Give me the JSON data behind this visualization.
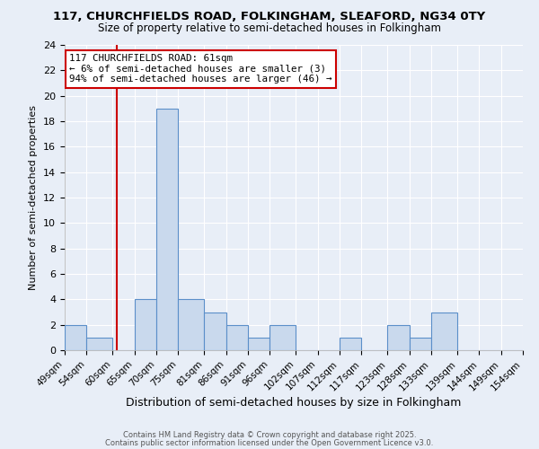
{
  "title_line1": "117, CHURCHFIELDS ROAD, FOLKINGHAM, SLEAFORD, NG34 0TY",
  "title_line2": "Size of property relative to semi-detached houses in Folkingham",
  "xlabel": "Distribution of semi-detached houses by size in Folkingham",
  "ylabel": "Number of semi-detached properties",
  "bin_labels": [
    "49sqm",
    "54sqm",
    "60sqm",
    "65sqm",
    "70sqm",
    "75sqm",
    "81sqm",
    "86sqm",
    "91sqm",
    "96sqm",
    "102sqm",
    "107sqm",
    "112sqm",
    "117sqm",
    "123sqm",
    "128sqm",
    "133sqm",
    "139sqm",
    "144sqm",
    "149sqm",
    "154sqm"
  ],
  "bin_edges": [
    49,
    54,
    60,
    65,
    70,
    75,
    81,
    86,
    91,
    96,
    102,
    107,
    112,
    117,
    123,
    128,
    133,
    139,
    144,
    149,
    154
  ],
  "bar_heights": [
    2,
    1,
    0,
    4,
    19,
    4,
    3,
    2,
    1,
    2,
    0,
    0,
    1,
    0,
    2,
    1,
    3,
    0,
    0,
    0
  ],
  "bar_color": "#c9d9ed",
  "bar_edge_color": "#5b8fc9",
  "vline_x": 61,
  "vline_color": "#cc0000",
  "annotation_line1": "117 CHURCHFIELDS ROAD: 61sqm",
  "annotation_line2": "← 6% of semi-detached houses are smaller (3)",
  "annotation_line3": "94% of semi-detached houses are larger (46) →",
  "annotation_box_color": "#ffffff",
  "annotation_border_color": "#cc0000",
  "ylim": [
    0,
    24
  ],
  "yticks": [
    0,
    2,
    4,
    6,
    8,
    10,
    12,
    14,
    16,
    18,
    20,
    22,
    24
  ],
  "background_color": "#e8eef7",
  "grid_color": "#ffffff",
  "footer_line1": "Contains HM Land Registry data © Crown copyright and database right 2025.",
  "footer_line2": "Contains public sector information licensed under the Open Government Licence v3.0."
}
